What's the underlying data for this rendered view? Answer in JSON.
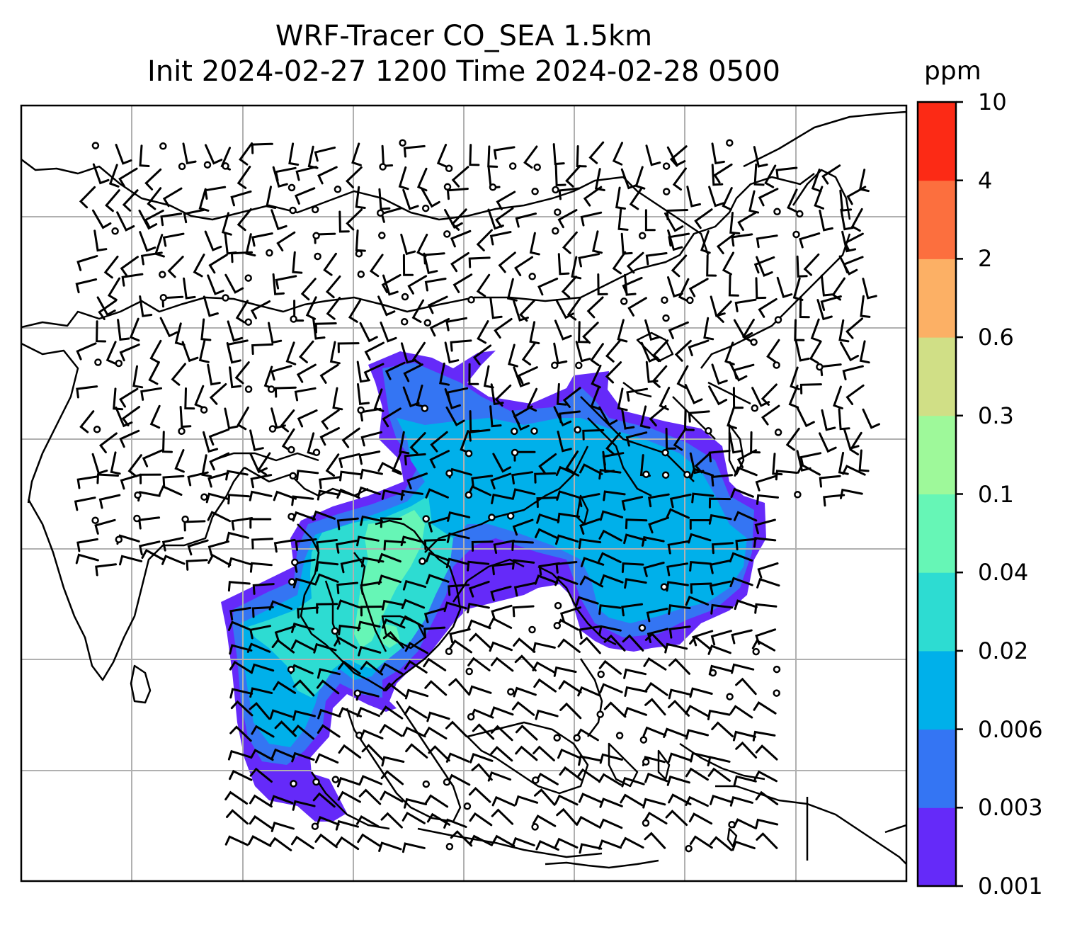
{
  "title": {
    "line1": "WRF-Tracer CO_SEA 1.5km",
    "line2": "Init 2024-02-27 1200 Time 2024-02-28 0500"
  },
  "colorbar": {
    "unit": "ppm",
    "levels": [
      "0.001",
      "0.003",
      "0.006",
      "0.02",
      "0.04",
      "0.1",
      "0.3",
      "0.6",
      "2",
      "4",
      "10"
    ],
    "colors": [
      "#652af9",
      "#3475f3",
      "#00b0ea",
      "#2ddcd2",
      "#66f6b6",
      "#9ef99a",
      "#d0df86",
      "#fcb065",
      "#fc6f3e",
      "#fc2a15"
    ]
  },
  "map": {
    "gridlines": true,
    "field": "CO tracer concentration",
    "overlay": "wind barbs"
  }
}
